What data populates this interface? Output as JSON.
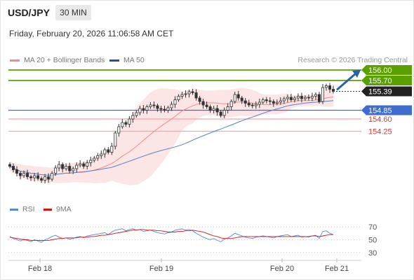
{
  "header": {
    "symbol": "USD/JPY",
    "interval": "30 MIN",
    "datetime": "Friday, February 20, 2026 11:06:58 AM CET"
  },
  "legend": {
    "bb_label": "MA 20 + Bollinger Bands",
    "ma50_label": "MA 50",
    "attribution": "Research © 2026 Trading Central"
  },
  "colors": {
    "bb_band": "#fbe0e0",
    "ma20": "#f48a8a",
    "ma50": "#5c80c8",
    "candle": "#333333",
    "resistance": "#5aa000",
    "pivot": "#3f6ccf",
    "support": "#f5a5a5",
    "rsi": "#5b86d6",
    "rsi_ma": "#dd1111",
    "arrow": "#2c5fb0"
  },
  "rsi_legend": {
    "rsi_label": "RSI",
    "ma_label": "9MA"
  },
  "chart_data": [
    {
      "type": "candlestick",
      "title": "USD/JPY",
      "y_range": [
        152.3,
        156.2
      ],
      "x_labels": [
        "Feb 18",
        "Feb 19",
        "Feb 20",
        "Feb 21"
      ],
      "levels": [
        {
          "value": 156.0,
          "label": "156.00",
          "kind": "resistance"
        },
        {
          "value": 155.7,
          "label": "155.70",
          "kind": "resistance"
        },
        {
          "value": 155.39,
          "label": "155.39",
          "kind": "current"
        },
        {
          "value": 154.85,
          "label": "154.85",
          "kind": "pivot"
        },
        {
          "value": 154.6,
          "label": "154.60",
          "kind": "support"
        },
        {
          "value": 154.25,
          "label": "154.25",
          "kind": "support"
        }
      ],
      "closes": [
        153.25,
        153.15,
        153.05,
        152.98,
        153.05,
        152.95,
        152.92,
        152.98,
        152.9,
        152.85,
        152.95,
        152.88,
        153.05,
        153.2,
        153.3,
        153.18,
        153.25,
        153.12,
        153.18,
        153.28,
        153.32,
        153.25,
        153.35,
        153.42,
        153.48,
        153.55,
        153.6,
        153.72,
        153.65,
        153.82,
        154.2,
        154.38,
        154.5,
        154.45,
        154.6,
        154.7,
        154.78,
        154.9,
        154.85,
        154.95,
        155.0,
        154.98,
        154.9,
        154.88,
        154.85,
        154.92,
        155.02,
        155.15,
        155.25,
        155.3,
        155.32,
        155.38,
        155.35,
        155.2,
        155.1,
        155.0,
        154.95,
        154.85,
        154.9,
        154.8,
        154.7,
        154.85,
        154.95,
        155.1,
        155.3,
        155.2,
        155.12,
        155.05,
        155.0,
        154.98,
        155.02,
        155.08,
        155.15,
        155.12,
        155.1,
        155.05,
        155.08,
        155.12,
        155.18,
        155.22,
        155.15,
        155.2,
        155.25,
        155.18,
        155.22,
        155.2,
        155.25,
        155.3,
        155.1,
        155.5,
        155.55,
        155.45,
        155.39
      ]
    },
    {
      "type": "line",
      "title": "RSI",
      "y_ticks": [
        70,
        50,
        30
      ],
      "series": [
        {
          "name": "RSI",
          "values": [
            55,
            52,
            50,
            48,
            51,
            49,
            47,
            50,
            48,
            46,
            50,
            52,
            55,
            57,
            54,
            52,
            53,
            51,
            52,
            54,
            55,
            53,
            56,
            57,
            58,
            59,
            60,
            61,
            58,
            62,
            65,
            66,
            67,
            64,
            66,
            67,
            65,
            66,
            63,
            64,
            65,
            63,
            61,
            60,
            59,
            61,
            62,
            65,
            66,
            67,
            65,
            66,
            64,
            60,
            57,
            54,
            52,
            50,
            52,
            49,
            47,
            51,
            53,
            56,
            60,
            58,
            56,
            54,
            53,
            52,
            54,
            55,
            56,
            55,
            54,
            53,
            55,
            56,
            57,
            58,
            55,
            56,
            57,
            54,
            55,
            54,
            56,
            57,
            52,
            63,
            64,
            60,
            58
          ]
        },
        {
          "name": "9MA",
          "values": [
            54,
            53,
            52,
            51,
            50,
            50,
            49,
            49,
            49,
            49,
            49,
            49,
            50,
            51,
            52,
            52,
            53,
            53,
            53,
            53,
            54,
            54,
            54,
            55,
            55,
            56,
            57,
            57,
            58,
            59,
            60,
            61,
            62,
            63,
            64,
            65,
            65,
            66,
            66,
            65,
            65,
            65,
            64,
            64,
            63,
            62,
            62,
            62,
            63,
            63,
            64,
            64,
            65,
            64,
            63,
            62,
            60,
            58,
            56,
            55,
            53,
            52,
            52,
            52,
            53,
            54,
            55,
            55,
            55,
            55,
            55,
            55,
            55,
            55,
            55,
            55,
            55,
            55,
            55,
            55,
            55,
            55,
            55,
            55,
            55,
            55,
            56,
            56,
            55,
            56,
            57,
            58,
            58
          ]
        }
      ]
    }
  ]
}
